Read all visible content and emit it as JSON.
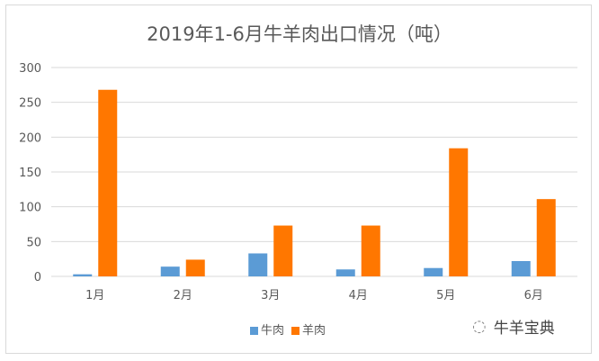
{
  "chart_data": {
    "type": "bar",
    "title": "2019年1-6月牛羊肉出口情况（吨）",
    "categories": [
      "1月",
      "2月",
      "3月",
      "4月",
      "5月",
      "6月"
    ],
    "series": [
      {
        "name": "牛肉",
        "color": "#5b9bd5",
        "values": [
          3,
          14,
          33,
          10,
          12,
          22
        ]
      },
      {
        "name": "羊肉",
        "color": "#ff7700",
        "values": [
          268,
          24,
          73,
          73,
          184,
          111
        ]
      }
    ],
    "ylim": [
      0,
      300
    ],
    "yticks": [
      0,
      50,
      100,
      150,
      200,
      250,
      300
    ],
    "grid": true,
    "legend": "bottom"
  },
  "watermark": "牛羊宝典"
}
